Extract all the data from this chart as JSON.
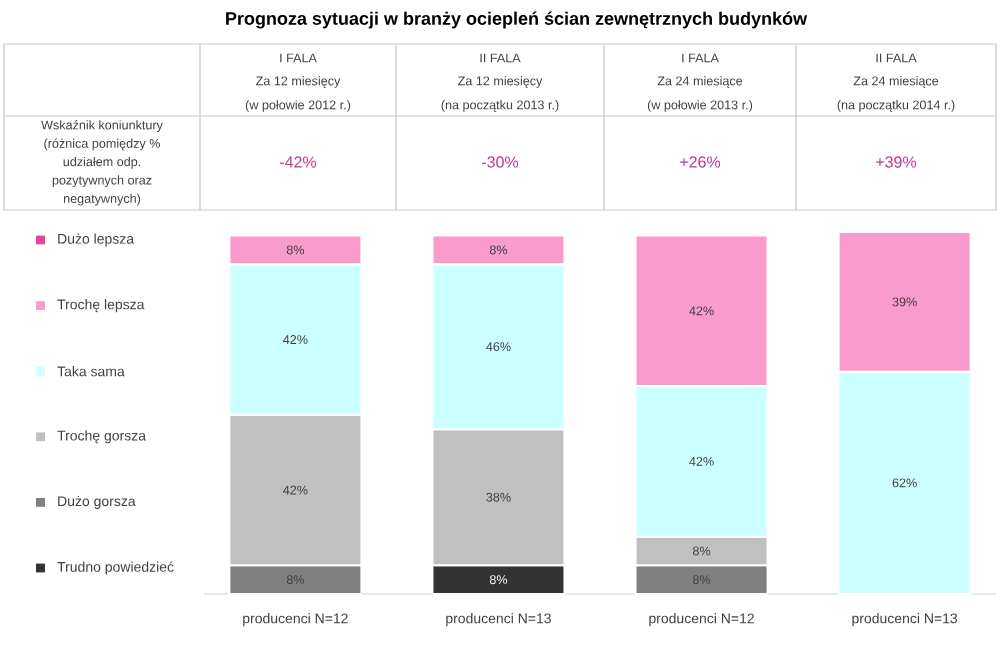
{
  "chart_data": {
    "type": "bar",
    "stacked": true,
    "title": "Prognoza sytuacji w branży ociepleń ścian zewnętrznych budynków",
    "categories": [
      "producenci N=12",
      "producenci N=13",
      "producenci N=12",
      "producenci N=13"
    ],
    "ylim": [
      0,
      101
    ],
    "tick_labels": "x",
    "legend": "left",
    "series": [
      {
        "name": "Trudno powiedzieć",
        "color": "#333333",
        "values": [
          null,
          8,
          null,
          null
        ],
        "value_labels": [
          null,
          "8%",
          null,
          null
        ]
      },
      {
        "name": "Dużo gorsza",
        "color": "#808080",
        "values": [
          8,
          null,
          8,
          null
        ],
        "value_labels": [
          "8%",
          null,
          "8%",
          null
        ]
      },
      {
        "name": "Trochę gorsza",
        "color": "#c0c0c0",
        "values": [
          42,
          38,
          8,
          null
        ],
        "value_labels": [
          "42%",
          "38%",
          "8%",
          null
        ]
      },
      {
        "name": "Taka sama",
        "color": "#ccffff",
        "values": [
          42,
          46,
          42,
          62
        ],
        "value_labels": [
          "42%",
          "46%",
          "42%",
          "62%"
        ]
      },
      {
        "name": "Trochę lepsza",
        "color": "#f99ccb",
        "values": [
          8,
          8,
          42,
          39
        ],
        "value_labels": [
          "8%",
          "8%",
          "42%",
          "39%"
        ]
      },
      {
        "name": "Dużo lepsza",
        "color": "#e0489b",
        "values": [
          null,
          null,
          null,
          null
        ]
      }
    ],
    "annotations": [
      "I FALA",
      "Za 12 miesięcy",
      "(w połowie 2012 r.)",
      "II FALA",
      "Za 12 miesięcy",
      "(na początku 2013 r.)",
      "I FALA",
      "Za 24 miesiące",
      "(w połowie 2013 r.)",
      "II FALA",
      "Za 24 miesiące",
      "(na początku 2014 r.)",
      "Wskaźnik koniunktury",
      "(różnica pomiędzy %",
      "udziałem odp.",
      "pozytywnych oraz",
      "negatywnych)",
      "-42%",
      "-30%",
      "+26%",
      "+39%"
    ]
  }
}
